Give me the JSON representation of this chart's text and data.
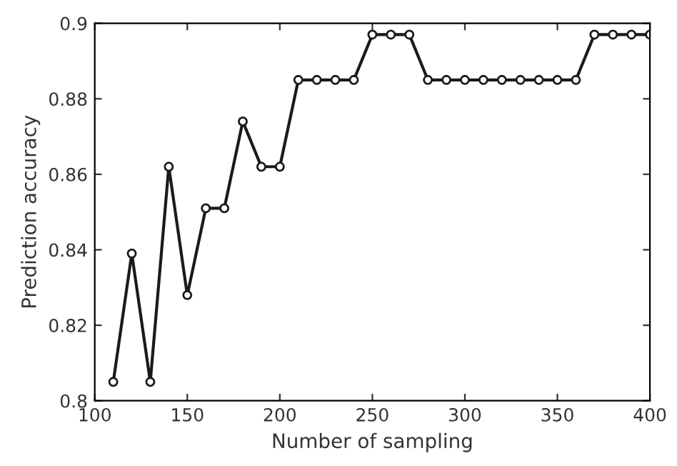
{
  "chart_data": {
    "type": "line",
    "xlabel": "Number of sampling",
    "ylabel": "Prediction accuracy",
    "x": [
      110,
      120,
      130,
      140,
      150,
      160,
      170,
      180,
      190,
      200,
      210,
      220,
      230,
      240,
      250,
      260,
      270,
      280,
      290,
      300,
      310,
      320,
      330,
      340,
      350,
      360,
      370,
      380,
      390,
      400
    ],
    "series": [
      {
        "color": "#1a1a1a",
        "values": [
          0.805,
          0.839,
          0.805,
          0.862,
          0.828,
          0.851,
          0.851,
          0.874,
          0.862,
          0.862,
          0.885,
          0.885,
          0.885,
          0.885,
          0.897,
          0.897,
          0.897,
          0.885,
          0.885,
          0.885,
          0.885,
          0.885,
          0.885,
          0.885,
          0.885,
          0.885,
          0.897,
          0.897,
          0.897,
          0.897
        ]
      }
    ],
    "xlim": [
      100,
      400
    ],
    "xticks": [
      100,
      150,
      200,
      250,
      300,
      350,
      400
    ],
    "ylim": [
      0.8,
      0.9
    ],
    "yticks": [
      0.8,
      0.82,
      0.84,
      0.86,
      0.88,
      0.9
    ],
    "marker": "circle",
    "line_style": "solid"
  }
}
